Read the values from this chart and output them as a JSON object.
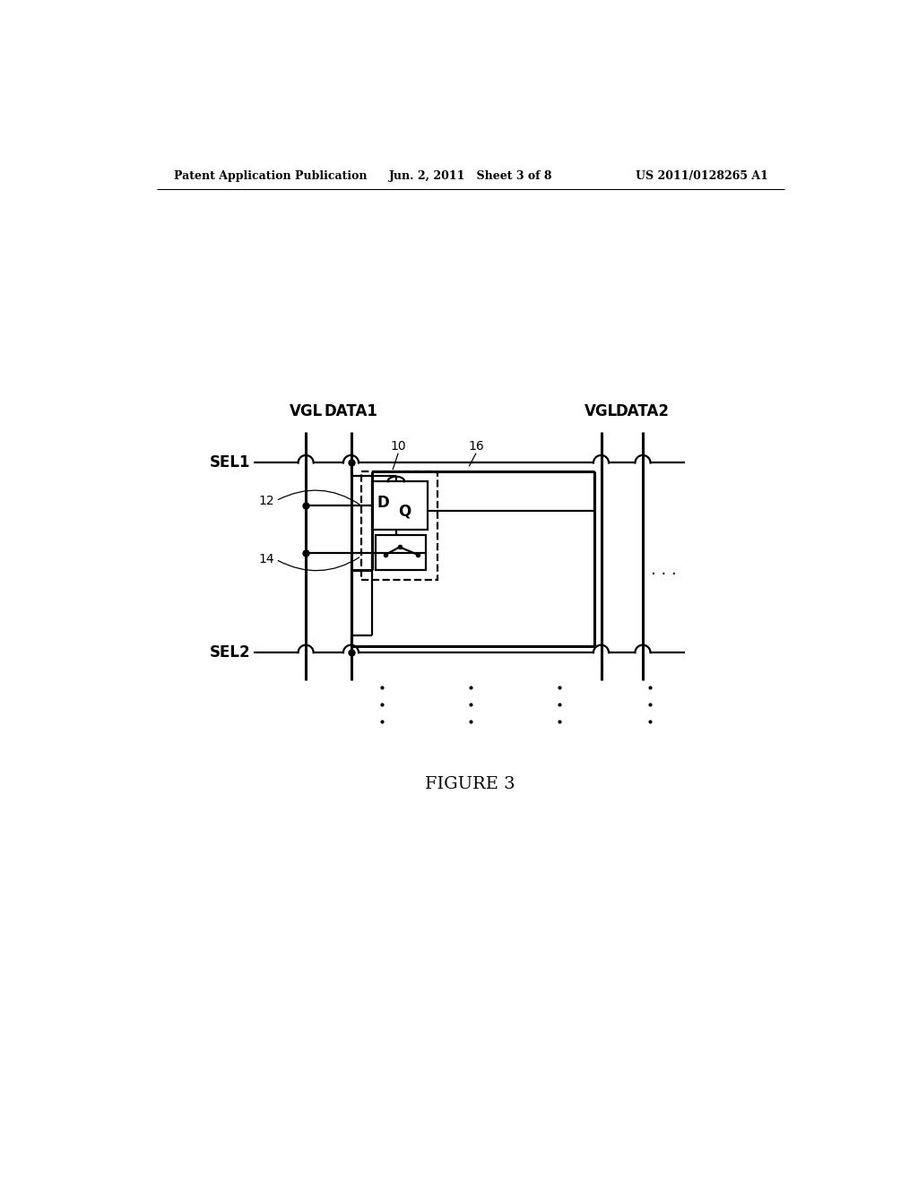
{
  "fig_width": 10.24,
  "fig_height": 13.2,
  "dpi": 100,
  "bg_color": "#ffffff",
  "header_left": "Patent Application Publication",
  "header_mid": "Jun. 2, 2011   Sheet 3 of 8",
  "header_right": "US 2011/0128265 A1",
  "figure_label": "FIGURE 3",
  "lc": "#000000",
  "lw": 1.6,
  "tlw": 2.2
}
